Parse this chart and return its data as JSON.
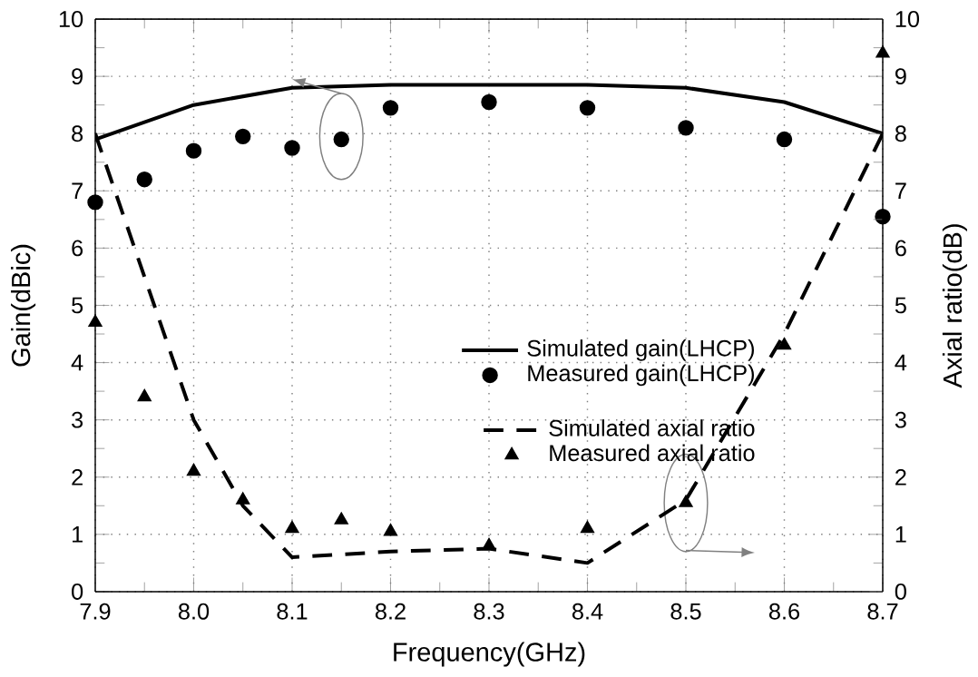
{
  "chart_data": {
    "type": "line",
    "xlabel": "Frequency(GHz)",
    "ylabel": "Gain(dBic)",
    "y2label": "Axial ratio(dB)",
    "xlim": [
      7.9,
      8.7
    ],
    "xticks": [
      7.9,
      {
        "value": 8.0,
        "label": "8.0"
      },
      8.1,
      8.2,
      8.3,
      8.4,
      8.5,
      8.6,
      8.7
    ],
    "ylim": [
      0,
      10
    ],
    "yticks": [
      0,
      1,
      2,
      3,
      4,
      5,
      6,
      7,
      8,
      9,
      10
    ],
    "y2lim": [
      0,
      10
    ],
    "y2ticks": [
      0,
      1,
      2,
      3,
      4,
      5,
      6,
      7,
      8,
      9,
      10
    ],
    "grid": true,
    "legend": "right",
    "series": [
      {
        "name": "Simulated gain(LHCP)",
        "color": "#000000",
        "line_style": "solid",
        "marker": "none",
        "x": [
          7.9,
          8.0,
          8.1,
          8.2,
          8.3,
          8.4,
          8.5,
          8.6,
          8.7
        ],
        "values": [
          7.9,
          8.5,
          8.8,
          8.85,
          8.85,
          8.85,
          8.8,
          8.55,
          8.0
        ]
      },
      {
        "name": "Measured gain(LHCP)",
        "type": "scatter",
        "color": "#000000",
        "marker": "circle",
        "x": [
          7.9,
          7.95,
          8.0,
          8.05,
          8.1,
          8.15,
          8.2,
          8.3,
          8.4,
          8.5,
          8.6,
          8.7
        ],
        "values": [
          6.8,
          7.2,
          7.7,
          7.95,
          7.75,
          7.9,
          8.45,
          8.55,
          8.45,
          8.1,
          7.9,
          6.55
        ]
      },
      {
        "name": "Simulated axial ratio",
        "axis": "y2",
        "color": "#000000",
        "line_style": "dashed",
        "marker": "none",
        "x": [
          7.9,
          7.95,
          8.0,
          8.05,
          8.1,
          8.2,
          8.3,
          8.4,
          8.5,
          8.6,
          8.7
        ],
        "values": [
          8.0,
          5.5,
          3.0,
          1.5,
          0.6,
          0.7,
          0.75,
          0.5,
          1.6,
          4.5,
          8.0
        ]
      },
      {
        "name": "Measured axial ratio",
        "type": "scatter",
        "axis": "y2",
        "color": "#000000",
        "marker": "triangle",
        "x": [
          7.9,
          7.95,
          8.0,
          8.05,
          8.1,
          8.15,
          8.2,
          8.3,
          8.4,
          8.5,
          8.6,
          8.7
        ],
        "values": [
          4.7,
          3.4,
          2.1,
          1.6,
          1.1,
          1.25,
          1.05,
          0.8,
          1.1,
          1.55,
          4.3,
          9.4
        ]
      }
    ]
  }
}
